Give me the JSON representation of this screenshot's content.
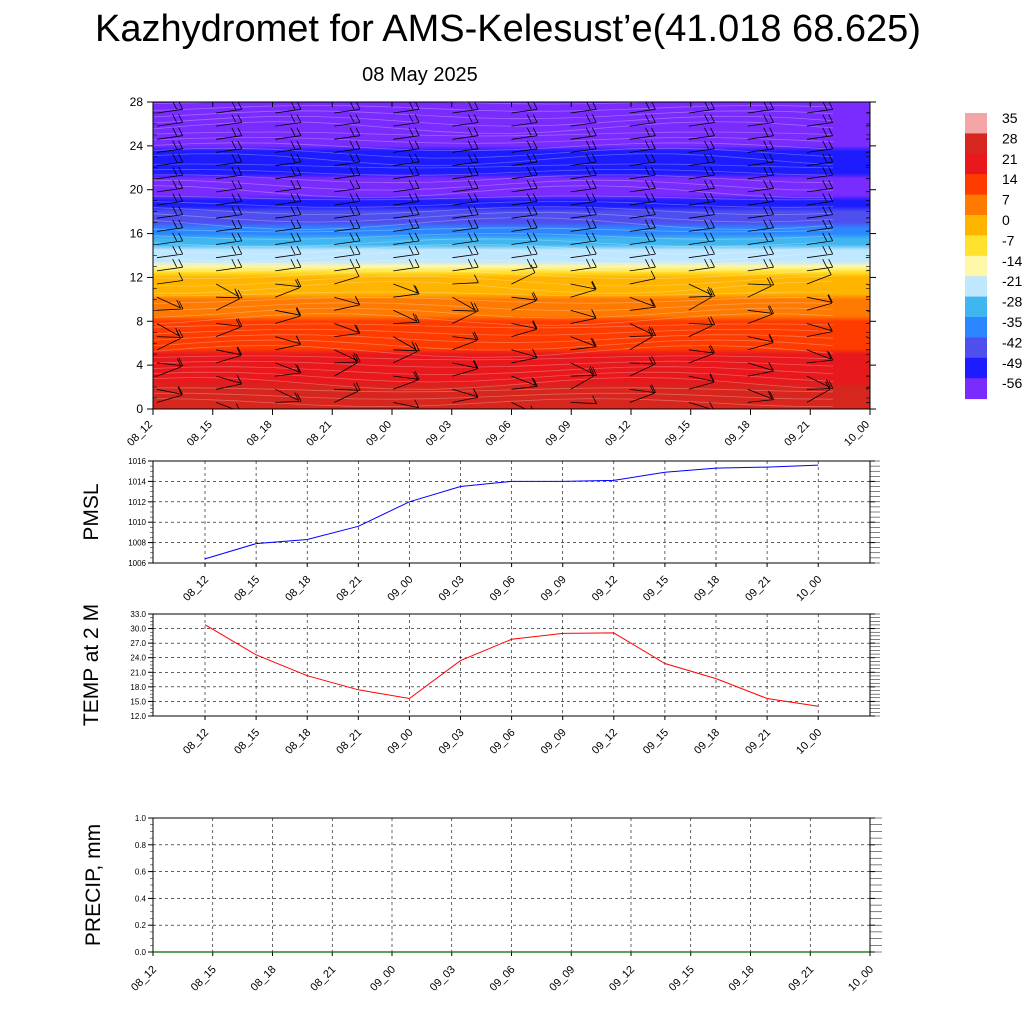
{
  "page": {
    "title": "Kazhydromet for AMS-Kelesust’e(41.018 68.625)",
    "subtitle": "08 May 2025"
  },
  "chart_data": [
    {
      "type": "heatmap",
      "xlabel": "",
      "ylabel": "",
      "ylim": [
        0,
        28
      ],
      "y_ticks": [
        0,
        4,
        8,
        12,
        16,
        20,
        24,
        28
      ],
      "x_ticks": [
        "08_12",
        "08_15",
        "08_18",
        "08_21",
        "09_00",
        "09_03",
        "09_06",
        "09_09",
        "09_12",
        "09_15",
        "09_18",
        "09_21",
        "10_00"
      ],
      "colorbar": {
        "labels": [
          "35",
          "28",
          "21",
          "14",
          "7",
          "0",
          "-7",
          "-14",
          "-21",
          "-28",
          "-35",
          "-42",
          "-49",
          "-56"
        ],
        "colors": [
          "#f4a6a6",
          "#d7261e",
          "#e8181c",
          "#ff3c00",
          "#ff7a00",
          "#ffb400",
          "#ffe22e",
          "#fff7a8",
          "#bfe7ff",
          "#3fb6f0",
          "#2c86ff",
          "#4f4ff0",
          "#1c1cff",
          "#7a2cff"
        ]
      },
      "temperature_profile": [
        {
          "h": 0,
          "t": 32
        },
        {
          "h": 4,
          "t": 24
        },
        {
          "h": 8,
          "t": 14
        },
        {
          "h": 12,
          "t": 2
        },
        {
          "h": 13,
          "t": -12
        },
        {
          "h": 16,
          "t": -30
        },
        {
          "h": 20,
          "t": -52
        },
        {
          "h": 23,
          "t": -45
        },
        {
          "h": 25,
          "t": -60
        },
        {
          "h": 28,
          "t": -62
        }
      ],
      "wind_barbs": true
    },
    {
      "type": "line",
      "ylabel": "PMSL",
      "x_ticks": [
        "08_12",
        "08_15",
        "08_18",
        "08_21",
        "09_00",
        "09_03",
        "09_06",
        "09_09",
        "09_12",
        "09_15",
        "09_18",
        "09_21",
        "10_00"
      ],
      "ylim": [
        1006,
        1016
      ],
      "y_ticks": [
        "1006",
        "1008",
        "1010",
        "1012",
        "1014",
        "1016"
      ],
      "color": "#0000ff",
      "series": [
        {
          "values": [
            1006.4,
            1007.9,
            1008.3,
            1009.6,
            1012.0,
            1013.5,
            1014.0,
            1014.0,
            1014.1,
            1014.9,
            1015.3,
            1015.4,
            1015.6
          ]
        }
      ]
    },
    {
      "type": "line",
      "ylabel": "TEMP at 2 M",
      "x_ticks": [
        "08_12",
        "08_15",
        "08_18",
        "08_21",
        "09_00",
        "09_03",
        "09_06",
        "09_09",
        "09_12",
        "09_15",
        "09_18",
        "09_21",
        "10_00"
      ],
      "ylim": [
        12,
        33
      ],
      "y_ticks": [
        "12.0",
        "15.0",
        "18.0",
        "21.0",
        "24.0",
        "27.0",
        "30.0",
        "33.0"
      ],
      "color": "#ff0000",
      "series": [
        {
          "values": [
            30.8,
            24.6,
            20.3,
            17.4,
            15.6,
            23.4,
            27.8,
            29.0,
            29.1,
            22.8,
            19.7,
            15.6,
            14.0
          ]
        }
      ]
    },
    {
      "type": "line",
      "ylabel": "PRECIP, mm",
      "x_ticks": [
        "08_12",
        "08_15",
        "08_18",
        "08_21",
        "09_00",
        "09_03",
        "09_06",
        "09_09",
        "09_12",
        "09_15",
        "09_18",
        "09_21",
        "10_00"
      ],
      "ylim": [
        0,
        1
      ],
      "y_ticks": [
        "0.0",
        "0.2",
        "0.4",
        "0.6",
        "0.8",
        "1.0"
      ],
      "color": "#006400",
      "series": [
        {
          "values": [
            0,
            0,
            0,
            0,
            0,
            0,
            0,
            0,
            0,
            0,
            0,
            0,
            0
          ]
        }
      ]
    }
  ]
}
